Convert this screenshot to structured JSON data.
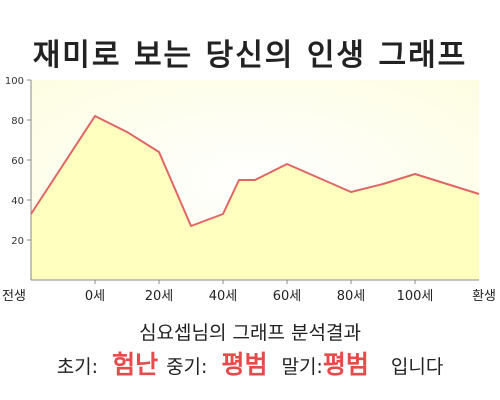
{
  "chart_data": {
    "type": "area",
    "title": "재미로 보는 당신의 인생 그래프",
    "x": [
      -20,
      0,
      10,
      20,
      30,
      40,
      45,
      50,
      60,
      70,
      80,
      90,
      100,
      120
    ],
    "y": [
      33,
      82,
      74,
      64,
      27,
      33,
      50,
      50,
      58,
      51,
      44,
      48,
      53,
      43
    ],
    "x_tick_labels": [
      {
        "x": -20,
        "label": "전생"
      },
      {
        "x": 0,
        "label": "0세"
      },
      {
        "x": 20,
        "label": "20세"
      },
      {
        "x": 40,
        "label": "40세"
      },
      {
        "x": 60,
        "label": "60세"
      },
      {
        "x": 80,
        "label": "80세"
      },
      {
        "x": 100,
        "label": "100세"
      },
      {
        "x": 120,
        "label": "환생"
      }
    ],
    "y_ticks": [
      20,
      40,
      60,
      80,
      100
    ],
    "xlim": [
      -20,
      120
    ],
    "ylim": [
      0,
      100
    ],
    "xlabel": "",
    "ylabel": "",
    "colors": {
      "fill": "#ffffc0",
      "line": "#e06666",
      "plot_bg": "#fdfde0",
      "axis": "#888888"
    },
    "grid": false,
    "legend": "none"
  },
  "result": {
    "subtitle": "심요셉님의 그래프 분석결과",
    "early_label": "초기:",
    "early_value": "험난",
    "mid_label": "중기:",
    "mid_value": "평범",
    "late_label": "말기:",
    "late_value": "평범",
    "suffix": "입니다"
  }
}
